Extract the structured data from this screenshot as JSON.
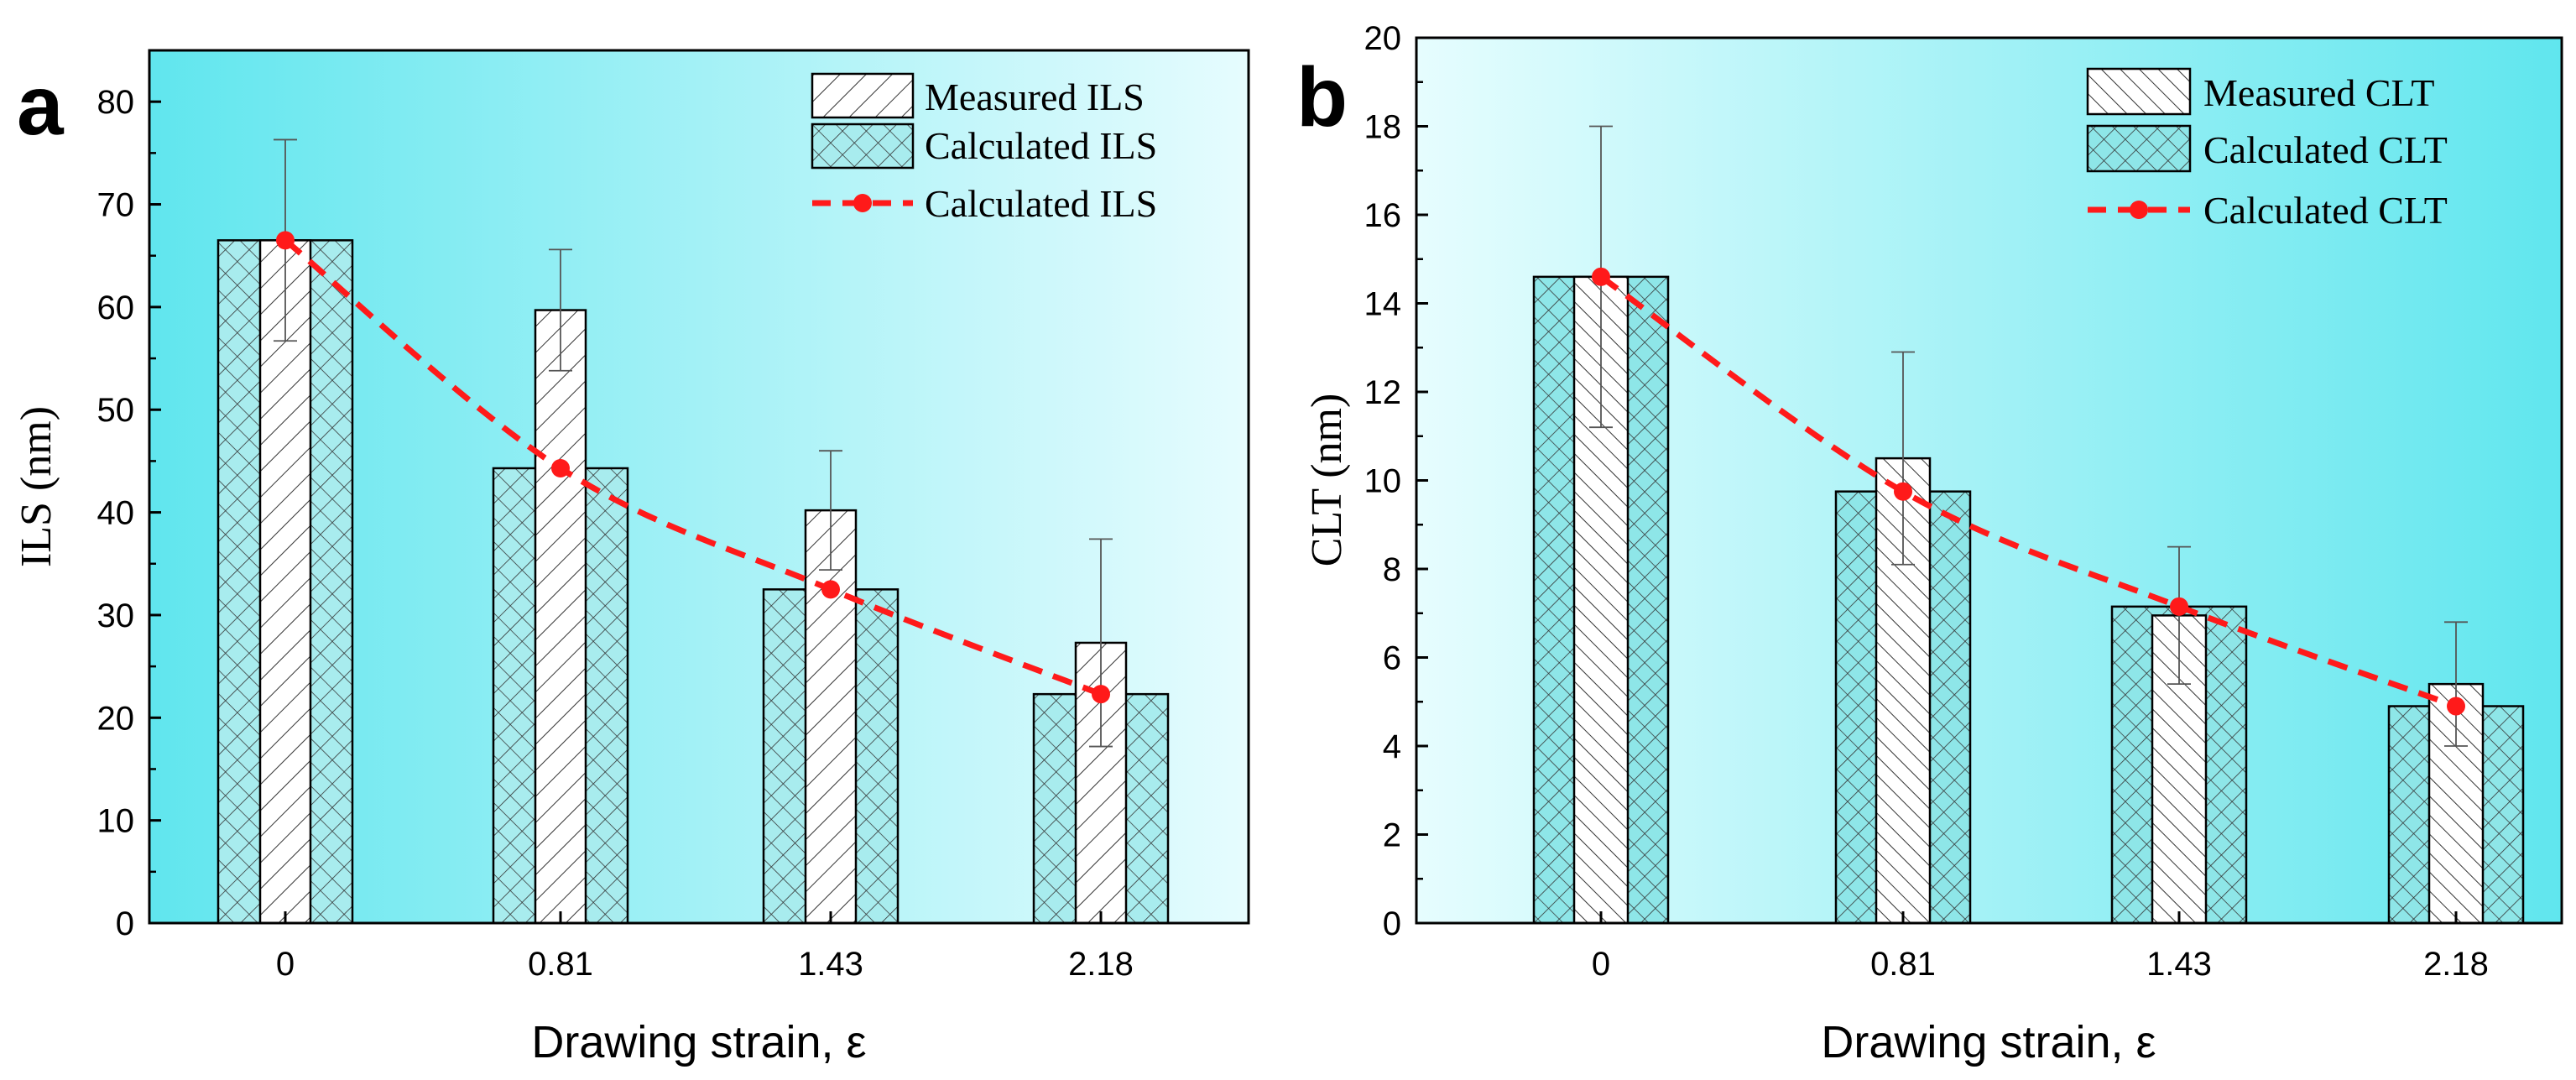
{
  "chart_data": [
    {
      "type": "bar",
      "panel_label": "a",
      "title": "",
      "xlabel": "Drawing strain, ε",
      "ylabel": "ILS (nm)",
      "categories": [
        "0",
        "0.81",
        "1.43",
        "2.18"
      ],
      "ylim": [
        0,
        85
      ],
      "yticks": [
        "0",
        "10",
        "20",
        "30",
        "40",
        "50",
        "60",
        "70",
        "80"
      ],
      "series": [
        {
          "name": "Measured ILS",
          "style": "bar-hatched",
          "values": [
            66.5,
            59.7,
            40.2,
            27.3
          ],
          "errors": [
            9.8,
            5.9,
            5.8,
            10.1
          ]
        },
        {
          "name": "Calculated ILS",
          "style": "bar-crosshatched",
          "values": [
            66.5,
            44.3,
            32.5,
            22.3
          ]
        },
        {
          "name": "Calculated ILS",
          "style": "line-dashed-markers",
          "values": [
            66.5,
            44.3,
            32.5,
            22.3
          ]
        }
      ],
      "legend_position": "top-right",
      "colors": {
        "bg_left": "#60e6ee",
        "bg_right": "#e6fcfe",
        "calc_fill": "#a8ecee",
        "line": "#ff1a1a"
      }
    },
    {
      "type": "bar",
      "panel_label": "b",
      "title": "",
      "xlabel": "Drawing strain, ε",
      "ylabel": "CLT (nm)",
      "categories": [
        "0",
        "0.81",
        "1.43",
        "2.18"
      ],
      "ylim": [
        0,
        20
      ],
      "yticks": [
        "0",
        "2",
        "4",
        "6",
        "8",
        "10",
        "12",
        "14",
        "16",
        "18",
        "20"
      ],
      "series": [
        {
          "name": "Measured CLT",
          "style": "bar-hatched",
          "values": [
            14.6,
            10.5,
            6.95,
            5.4
          ],
          "errors": [
            3.4,
            2.4,
            1.55,
            1.4
          ]
        },
        {
          "name": "Calculated CLT",
          "style": "bar-crosshatched",
          "values": [
            14.6,
            9.75,
            7.15,
            4.9
          ]
        },
        {
          "name": "Calculated CLT",
          "style": "line-dashed-markers",
          "values": [
            14.6,
            9.75,
            7.15,
            4.9
          ]
        }
      ],
      "legend_position": "top-right",
      "colors": {
        "bg_left": "#e6fdfe",
        "bg_right": "#60e6ee",
        "calc_fill": "#8ee6e8",
        "line": "#ff1a1a"
      }
    }
  ]
}
